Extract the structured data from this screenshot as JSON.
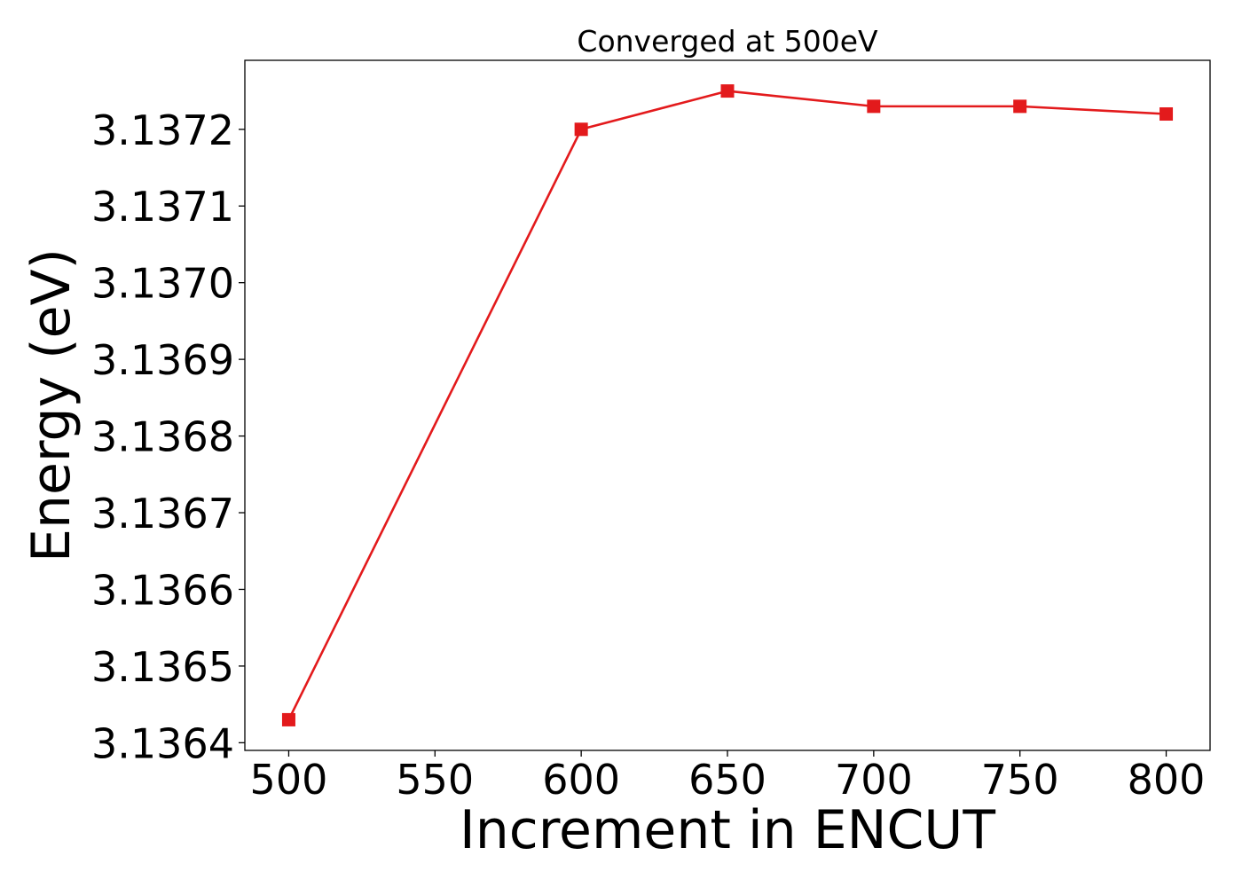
{
  "chart_data": {
    "type": "line",
    "title": "Converged at 500eV",
    "xlabel": "Increment in ENCUT",
    "ylabel": "Energy (eV)",
    "x": [
      500,
      600,
      650,
      700,
      750,
      800
    ],
    "series": [
      {
        "values": [
          3.13643,
          3.1372,
          3.13725,
          3.13723,
          3.13723,
          3.13722
        ],
        "color": "#e31a1c",
        "marker": "square"
      }
    ],
    "xticks": [
      500,
      550,
      600,
      650,
      700,
      750,
      800
    ],
    "xtick_labels": [
      "500",
      "550",
      "600",
      "650",
      "700",
      "750",
      "800"
    ],
    "yticks": [
      3.1364,
      3.1365,
      3.1366,
      3.1367,
      3.1368,
      3.1369,
      3.137,
      3.1371,
      3.1372
    ],
    "ytick_labels": [
      "3.1364",
      "3.1365",
      "3.1366",
      "3.1367",
      "3.1368",
      "3.1369",
      "3.1370",
      "3.1371",
      "3.1372"
    ],
    "xlim": [
      485,
      815
    ],
    "ylim": [
      3.13639,
      3.13729
    ],
    "grid": false,
    "legend": "none"
  }
}
